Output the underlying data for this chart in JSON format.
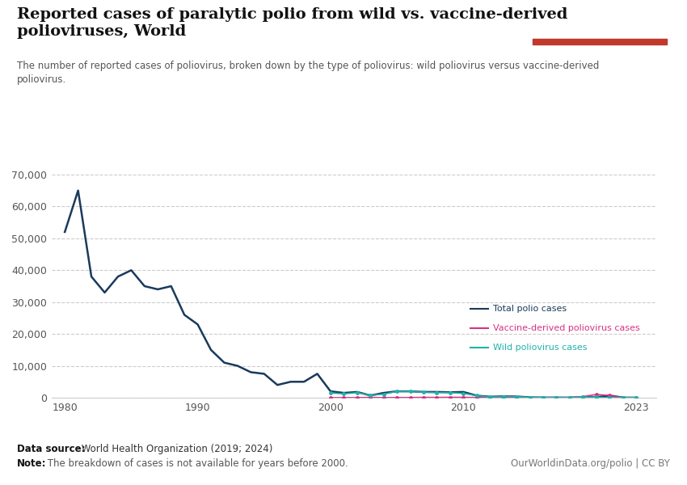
{
  "title": "Reported cases of paralytic polio from wild vs. vaccine-derived\npolioviruses, World",
  "subtitle": "The number of reported cases of poliovirus, broken down by the type of poliovirus: wild poliovirus versus vaccine-derived\npoliovirus.",
  "datasource_bold": "Data source:",
  "datasource_regular": " World Health Organization (2019; 2024)",
  "note_bold": "Note:",
  "note_regular": " The breakdown of cases is not available for years before 2000.",
  "credit": "OurWorldinData.org/polio | CC BY",
  "total_years": [
    1980,
    1981,
    1982,
    1983,
    1984,
    1985,
    1986,
    1987,
    1988,
    1989,
    1990,
    1991,
    1992,
    1993,
    1994,
    1995,
    1996,
    1997,
    1998,
    1999,
    2000,
    2001,
    2002,
    2003,
    2004,
    2005,
    2006,
    2007,
    2008,
    2009,
    2010,
    2011,
    2012,
    2013,
    2014,
    2015,
    2016,
    2017,
    2018,
    2019,
    2020,
    2021,
    2022,
    2023
  ],
  "total_values": [
    52000,
    65000,
    38000,
    33000,
    38000,
    40000,
    35000,
    34000,
    35000,
    26000,
    23000,
    15000,
    11000,
    10000,
    8000,
    7500,
    4000,
    5000,
    5000,
    7500,
    2000,
    1500,
    1800,
    700,
    1500,
    2000,
    2000,
    1800,
    1800,
    1700,
    1800,
    650,
    300,
    420,
    380,
    100,
    50,
    30,
    30,
    175,
    140,
    700,
    30,
    12
  ],
  "vaccine_years": [
    2000,
    2001,
    2002,
    2003,
    2004,
    2005,
    2006,
    2007,
    2008,
    2009,
    2010,
    2011,
    2012,
    2013,
    2014,
    2015,
    2016,
    2017,
    2018,
    2019,
    2020,
    2021,
    2022,
    2023
  ],
  "vaccine_values": [
    0,
    30,
    30,
    80,
    30,
    50,
    50,
    100,
    90,
    120,
    120,
    50,
    5,
    10,
    60,
    20,
    5,
    96,
    28,
    360,
    1000,
    680,
    25,
    8
  ],
  "wild_years": [
    2000,
    2001,
    2002,
    2003,
    2004,
    2005,
    2006,
    2007,
    2008,
    2009,
    2010,
    2011,
    2012,
    2013,
    2014,
    2015,
    2016,
    2017,
    2018,
    2019,
    2020,
    2021,
    2022,
    2023
  ],
  "wild_values": [
    1500,
    1200,
    1600,
    780,
    1100,
    2000,
    2000,
    1700,
    1600,
    1600,
    1350,
    650,
    220,
    380,
    350,
    95,
    42,
    22,
    33,
    175,
    140,
    6,
    30,
    12
  ],
  "total_color": "#1a3a5c",
  "vaccine_color": "#d63384",
  "wild_color": "#20b2aa",
  "bg_color": "#ffffff",
  "ylim": [
    0,
    70000
  ],
  "yticks": [
    0,
    10000,
    20000,
    30000,
    40000,
    50000,
    60000,
    70000
  ],
  "xlim": [
    1979,
    2024.5
  ],
  "xticks": [
    1980,
    1990,
    2000,
    2010,
    2023
  ],
  "xtick_labels": [
    "1980",
    "1990",
    "2000",
    "2010",
    "2023"
  ],
  "legend_labels": [
    "Total polio cases",
    "Vaccine-derived poliovirus cases",
    "Wild poliovirus cases"
  ],
  "legend_colors": [
    "#1a3a5c",
    "#d63384",
    "#20b2aa"
  ],
  "owid_bg": "#1a3a5c",
  "owid_red": "#c0392b"
}
